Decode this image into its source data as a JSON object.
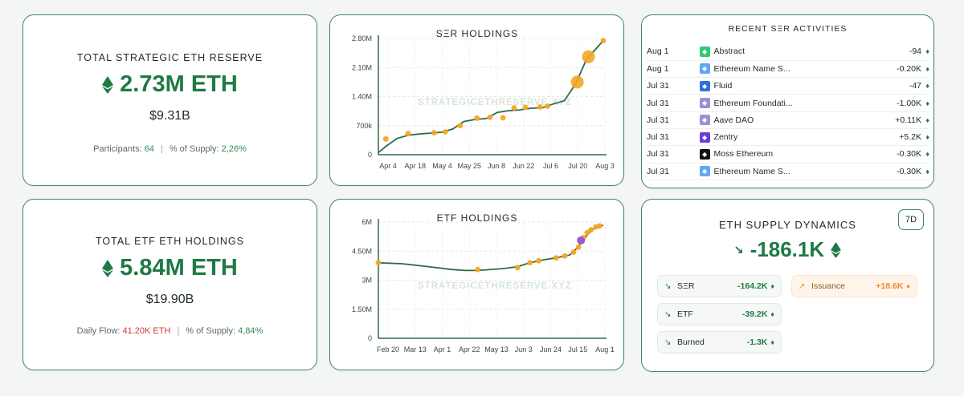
{
  "ser_reserve": {
    "label": "TOTAL STRATEGIC ETH RESERVE",
    "amount": "2.73M ETH",
    "usd": "$9.31B",
    "participants_label": "Participants:",
    "participants_value": "64",
    "supply_label": "% of Supply:",
    "supply_value": "2,26%"
  },
  "etf_holdings_card": {
    "label": "TOTAL ETF ETH HOLDINGS",
    "amount": "5.84M ETH",
    "usd": "$19.90B",
    "flow_label": "Daily Flow:",
    "flow_value": "41.20K ETH",
    "supply_label": "% of Supply:",
    "supply_value": "4,84%"
  },
  "watermark": "STRATEGICETHRESERVE.XYZ",
  "chart_data": [
    {
      "type": "line",
      "title": "SΞR HOLDINGS",
      "y_ticks": [
        "2.80M",
        "2.10M",
        "1.40M",
        "700k",
        "0"
      ],
      "y_tick_values": [
        2800000,
        2100000,
        1400000,
        700000,
        0
      ],
      "x_ticks": [
        "Apr 4",
        "Apr 18",
        "May 4",
        "May 25",
        "Jun 8",
        "Jun 22",
        "Jul 6",
        "Jul 20",
        "Aug 3"
      ],
      "ylim": [
        0,
        2800000
      ],
      "x": [
        "Apr 4",
        "Apr 8",
        "Apr 14",
        "Apr 20",
        "Apr 26",
        "May 2",
        "May 8",
        "May 14",
        "May 20",
        "May 26",
        "Jun 1",
        "Jun 7",
        "Jun 13",
        "Jun 19",
        "Jun 25",
        "Jul 1",
        "Jul 7",
        "Jul 13",
        "Jul 19",
        "Jul 25",
        "Aug 3"
      ],
      "values": [
        50000,
        200000,
        390000,
        470000,
        500000,
        520000,
        540000,
        620000,
        800000,
        850000,
        870000,
        1020000,
        1060000,
        1080000,
        1120000,
        1130000,
        1220000,
        1300000,
        1700000,
        2300000,
        2750000
      ],
      "markers": [
        {
          "x": "Apr 8",
          "y": 380000,
          "size": "small"
        },
        {
          "x": "Apr 20",
          "y": 510000,
          "size": "small"
        },
        {
          "x": "May 4",
          "y": 530000,
          "size": "small"
        },
        {
          "x": "May 10",
          "y": 550000,
          "size": "small"
        },
        {
          "x": "May 18",
          "y": 700000,
          "size": "small"
        },
        {
          "x": "May 27",
          "y": 880000,
          "size": "small"
        },
        {
          "x": "Jun 3",
          "y": 900000,
          "size": "small"
        },
        {
          "x": "Jun 10",
          "y": 890000,
          "size": "small"
        },
        {
          "x": "Jun 16",
          "y": 1130000,
          "size": "small"
        },
        {
          "x": "Jun 22",
          "y": 1140000,
          "size": "small"
        },
        {
          "x": "Jun 30",
          "y": 1150000,
          "size": "small"
        },
        {
          "x": "Jul 4",
          "y": 1170000,
          "size": "small"
        },
        {
          "x": "Jul 20",
          "y": 1750000,
          "size": "large"
        },
        {
          "x": "Jul 26",
          "y": 2360000,
          "size": "large"
        },
        {
          "x": "Aug 3",
          "y": 2750000,
          "size": "small"
        }
      ],
      "grid": true,
      "line_color": "#2e6b45",
      "marker_color": "#f5a623"
    },
    {
      "type": "line",
      "title": "ETF HOLDINGS",
      "y_ticks": [
        "6M",
        "4.50M",
        "3M",
        "1.50M",
        "0"
      ],
      "y_tick_values": [
        6000000,
        4500000,
        3000000,
        1500000,
        0
      ],
      "x_ticks": [
        "Feb 20",
        "Mar 13",
        "Apr 1",
        "Apr 22",
        "May 13",
        "Jun 3",
        "Jun 24",
        "Jul 15",
        "Aug 1"
      ],
      "ylim": [
        0,
        6000000
      ],
      "x": [
        "Feb 1",
        "Feb 20",
        "Mar 13",
        "Apr 1",
        "Apr 12",
        "Apr 22",
        "May 13",
        "May 24",
        "Jun 3",
        "Jun 14",
        "Jun 24",
        "Jul 5",
        "Jul 10",
        "Jul 15",
        "Jul 20",
        "Jul 25",
        "Aug 1"
      ],
      "values": [
        3900000,
        3850000,
        3700000,
        3550000,
        3500000,
        3500000,
        3600000,
        3700000,
        3900000,
        4050000,
        4150000,
        4300000,
        4600000,
        5000000,
        5400000,
        5700000,
        5840000
      ],
      "markers": [
        {
          "x": "Feb 1",
          "y": 3900000,
          "size": "small"
        },
        {
          "x": "Apr 22",
          "y": 3550000,
          "size": "small"
        },
        {
          "x": "May 24",
          "y": 3650000,
          "size": "small"
        },
        {
          "x": "Jun 3",
          "y": 3900000,
          "size": "small"
        },
        {
          "x": "Jun 10",
          "y": 4000000,
          "size": "small"
        },
        {
          "x": "Jun 24",
          "y": 4150000,
          "size": "small"
        },
        {
          "x": "Jul 1",
          "y": 4250000,
          "size": "small"
        },
        {
          "x": "Jul 8",
          "y": 4450000,
          "size": "small"
        },
        {
          "x": "Jul 12",
          "y": 4700000,
          "size": "small"
        },
        {
          "x": "Jul 16",
          "y": 5200000,
          "size": "small"
        },
        {
          "x": "Jul 19",
          "y": 5450000,
          "size": "small"
        },
        {
          "x": "Jul 22",
          "y": 5600000,
          "size": "small"
        },
        {
          "x": "Jul 26",
          "y": 5750000,
          "size": "small"
        },
        {
          "x": "Jul 29",
          "y": 5800000,
          "size": "small"
        }
      ],
      "highlight_marker": {
        "x": "Jul 14",
        "y": 5050000
      },
      "grid": true,
      "line_color": "#2e6b45",
      "marker_color": "#f5a623",
      "highlight_color": "#9b59d0"
    }
  ],
  "activities": {
    "title": "RECENT SΞR ACTIVITIES",
    "rows": [
      {
        "date": "Aug 1",
        "icon": "abstract-icon",
        "icon_color": "#2ecc71",
        "name": "Abstract",
        "value": "-94",
        "positive": false
      },
      {
        "date": "Aug 1",
        "icon": "ens-icon",
        "icon_color": "#5fa8f5",
        "name": "Ethereum Name S...",
        "value": "-0.20K",
        "positive": false
      },
      {
        "date": "Jul 31",
        "icon": "fluid-icon",
        "icon_color": "#2f6fe0",
        "name": "Fluid",
        "value": "-47",
        "positive": false
      },
      {
        "date": "Jul 31",
        "icon": "ethereum-foundation-icon",
        "icon_color": "#9b8fd6",
        "name": "Ethereum Foundati...",
        "value": "-1.00K",
        "positive": false
      },
      {
        "date": "Jul 31",
        "icon": "aave-icon",
        "icon_color": "#9b8fd6",
        "name": "Aave DAO",
        "value": "+0.11K",
        "positive": true
      },
      {
        "date": "Jul 31",
        "icon": "zentry-icon",
        "icon_color": "#6b3be0",
        "name": "Zentry",
        "value": "+5.2K",
        "positive": true
      },
      {
        "date": "Jul 31",
        "icon": "moss-icon",
        "icon_color": "#111111",
        "name": "Moss Ethereum",
        "value": "-0.30K",
        "positive": false
      },
      {
        "date": "Jul 31",
        "icon": "ens-icon",
        "icon_color": "#5fa8f5",
        "name": "Ethereum Name S...",
        "value": "-0.30K",
        "positive": false
      }
    ]
  },
  "supply": {
    "title": "ETH SUPPLY DYNAMICS",
    "range_button": "7D",
    "net": "-186.1K",
    "items": {
      "ser": {
        "name": "SΞR",
        "value": "-164.2K"
      },
      "etf": {
        "name": "ETF",
        "value": "-39.2K"
      },
      "burned": {
        "name": "Burned",
        "value": "-1.3K"
      },
      "issuance": {
        "name": "Issuance",
        "value": "+18.6K"
      }
    }
  },
  "colors": {
    "accent_green": "#1f7a44",
    "negative_red": "#d43a3a",
    "issuance_orange": "#f08a24",
    "card_border": "#3f8a5d"
  }
}
